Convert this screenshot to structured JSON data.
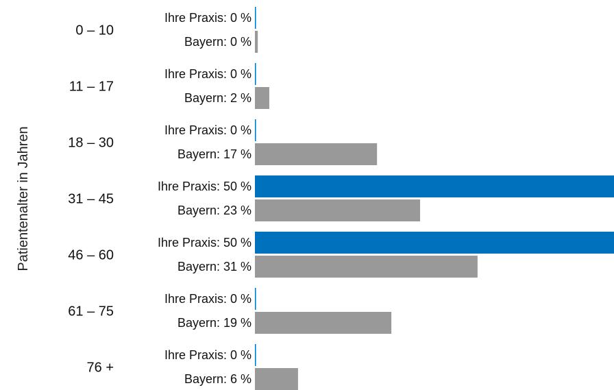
{
  "chart_data": {
    "type": "bar",
    "orientation": "horizontal",
    "title": "",
    "xlabel": "",
    "ylabel": "Patientenalter in Jahren",
    "unit": "%",
    "xlim": [
      0,
      50
    ],
    "grid": false,
    "legend": "none",
    "categories": [
      "0 – 10",
      "11 – 17",
      "18 – 30",
      "31 – 45",
      "46 – 60",
      "61 – 75",
      "76 +"
    ],
    "series": [
      {
        "name": "Ihre Praxis",
        "color": "#0071BC",
        "values": [
          0,
          0,
          0,
          50,
          50,
          0,
          0
        ],
        "labels": [
          "Ihre Praxis: 0 %",
          "Ihre Praxis: 0 %",
          "Ihre Praxis: 0 %",
          "Ihre Praxis: 50 %",
          "Ihre Praxis: 50 %",
          "Ihre Praxis: 0 %",
          "Ihre Praxis: 0 %"
        ]
      },
      {
        "name": "Bayern",
        "color": "#999999",
        "values": [
          0.4,
          2,
          17,
          23,
          31,
          19,
          6
        ],
        "labels": [
          "Bayern: 0 %",
          "Bayern: 2 %",
          "Bayern: 17 %",
          "Bayern: 23 %",
          "Bayern: 31 %",
          "Bayern: 19 %",
          "Bayern: 6 %"
        ]
      }
    ]
  }
}
